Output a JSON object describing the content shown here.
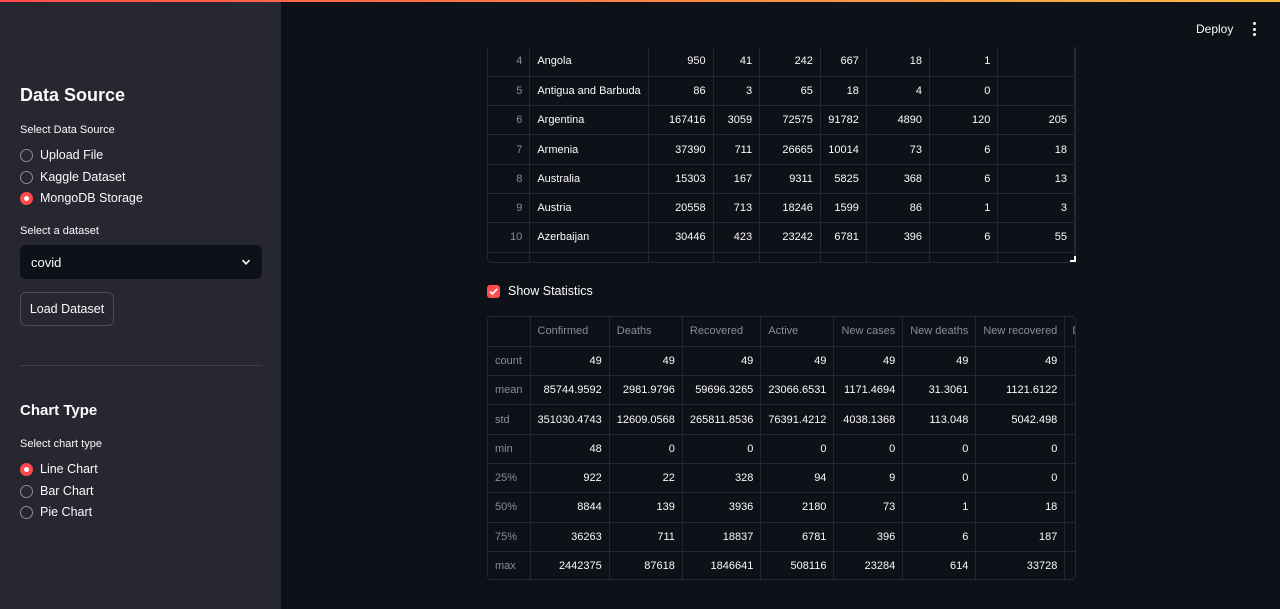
{
  "app": {
    "deploy_label": "Deploy",
    "accent_color": "#ff4b4b",
    "bg_color": "#0e1117",
    "sidebar_color": "#262730"
  },
  "sidebar": {
    "data_source": {
      "title": "Data Source",
      "label": "Select Data Source",
      "options": [
        "Upload File",
        "Kaggle Dataset",
        "MongoDB Storage"
      ],
      "selected": "MongoDB Storage"
    },
    "dataset": {
      "label": "Select a dataset",
      "value": "covid"
    },
    "load_button": "Load Dataset",
    "chart_type": {
      "title": "Chart Type",
      "label": "Select chart type",
      "options": [
        "Line Chart",
        "Bar Chart",
        "Pie Chart"
      ],
      "selected": "Line Chart"
    }
  },
  "data_table": {
    "rows": [
      {
        "index": "4",
        "country": "Angola",
        "values": [
          "950",
          "41",
          "242",
          "667",
          "18",
          "1",
          ""
        ]
      },
      {
        "index": "5",
        "country": "Antigua and Barbuda",
        "values": [
          "86",
          "3",
          "65",
          "18",
          "4",
          "0",
          ""
        ]
      },
      {
        "index": "6",
        "country": "Argentina",
        "values": [
          "167416",
          "3059",
          "72575",
          "91782",
          "4890",
          "120",
          "205"
        ]
      },
      {
        "index": "7",
        "country": "Armenia",
        "values": [
          "37390",
          "711",
          "26665",
          "10014",
          "73",
          "6",
          "18"
        ]
      },
      {
        "index": "8",
        "country": "Australia",
        "values": [
          "15303",
          "167",
          "9311",
          "5825",
          "368",
          "6",
          "13"
        ]
      },
      {
        "index": "9",
        "country": "Austria",
        "values": [
          "20558",
          "713",
          "18246",
          "1599",
          "86",
          "1",
          "3"
        ]
      },
      {
        "index": "10",
        "country": "Azerbaijan",
        "values": [
          "30446",
          "423",
          "23242",
          "6781",
          "396",
          "6",
          "55"
        ]
      }
    ]
  },
  "show_statistics": {
    "label": "Show Statistics",
    "checked": true
  },
  "stats_table": {
    "columns": [
      "Confirmed",
      "Deaths",
      "Recovered",
      "Active",
      "New cases",
      "New deaths",
      "New recovered",
      "Death"
    ],
    "rows": [
      {
        "label": "count",
        "values": [
          "49",
          "49",
          "49",
          "49",
          "49",
          "49",
          "49",
          ""
        ]
      },
      {
        "label": "mean",
        "values": [
          "85744.9592",
          "2981.9796",
          "59696.3265",
          "23066.6531",
          "1171.4694",
          "31.3061",
          "1121.6122",
          ""
        ]
      },
      {
        "label": "std",
        "values": [
          "351030.4743",
          "12609.0568",
          "265811.8536",
          "76391.4212",
          "4038.1368",
          "113.048",
          "5042.498",
          ""
        ]
      },
      {
        "label": "min",
        "values": [
          "48",
          "0",
          "0",
          "0",
          "0",
          "0",
          "0",
          ""
        ]
      },
      {
        "label": "25%",
        "values": [
          "922",
          "22",
          "328",
          "94",
          "9",
          "0",
          "0",
          ""
        ]
      },
      {
        "label": "50%",
        "values": [
          "8844",
          "139",
          "3936",
          "2180",
          "73",
          "1",
          "18",
          ""
        ]
      },
      {
        "label": "75%",
        "values": [
          "36263",
          "711",
          "18837",
          "6781",
          "396",
          "6",
          "187",
          ""
        ]
      },
      {
        "label": "max",
        "values": [
          "2442375",
          "87618",
          "1846641",
          "508116",
          "23284",
          "614",
          "33728",
          ""
        ]
      }
    ]
  }
}
